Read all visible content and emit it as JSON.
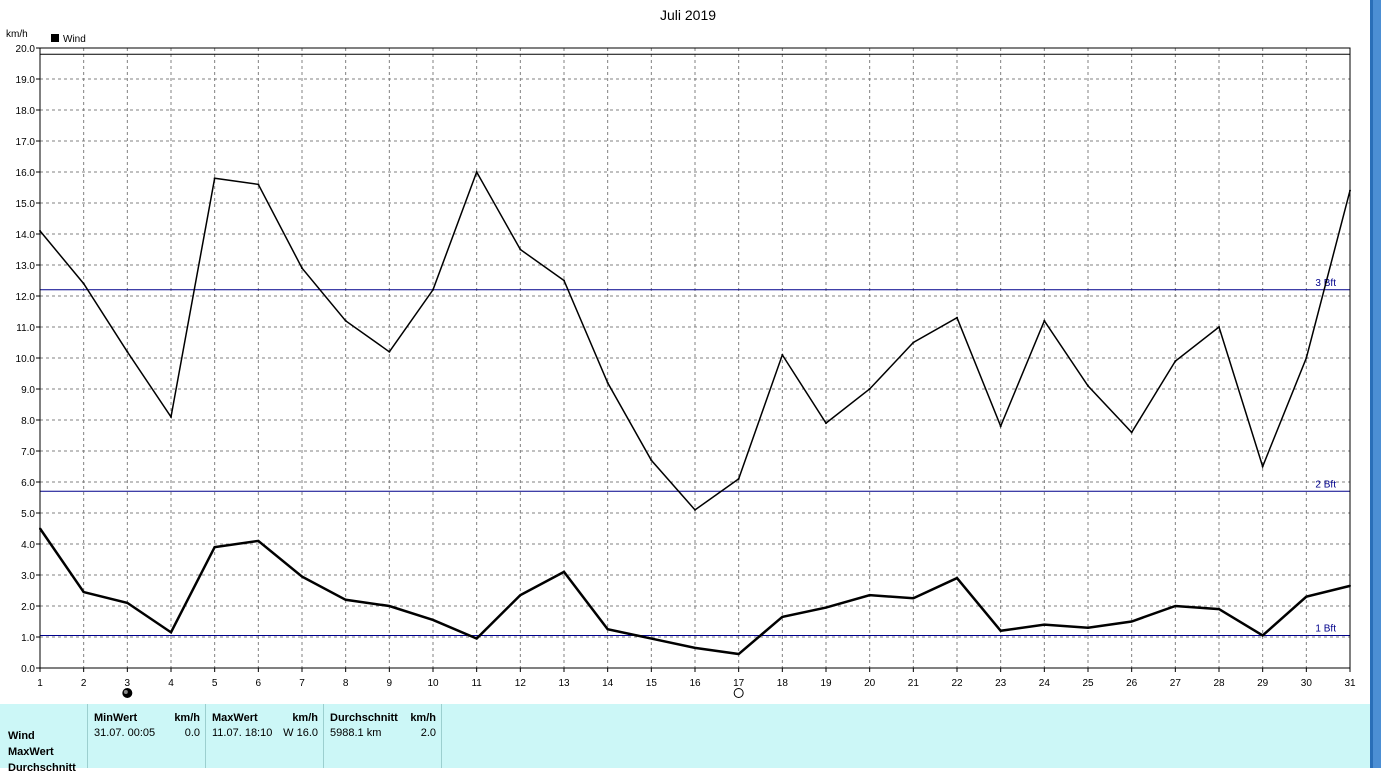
{
  "chart_data": {
    "type": "line",
    "title": "Juli 2019",
    "ylabel": "km/h",
    "xlabel": "",
    "x": [
      1,
      2,
      3,
      4,
      5,
      6,
      7,
      8,
      9,
      10,
      11,
      12,
      13,
      14,
      15,
      16,
      17,
      18,
      19,
      20,
      21,
      22,
      23,
      24,
      25,
      26,
      27,
      28,
      29,
      30,
      31
    ],
    "xlim": [
      1,
      31
    ],
    "ylim": [
      0,
      20
    ],
    "grid": true,
    "legend": {
      "placement": "top-left",
      "entries": [
        {
          "label": "Wind",
          "color": "#000000"
        }
      ]
    },
    "y_ticks": [
      "0.0",
      "1.0",
      "2.0",
      "3.0",
      "4.0",
      "5.0",
      "6.0",
      "7.0",
      "8.0",
      "9.0",
      "10.0",
      "11.0",
      "12.0",
      "13.0",
      "14.0",
      "15.0",
      "16.0",
      "17.0",
      "18.0",
      "19.0",
      "20.0"
    ],
    "x_ticks": [
      "1",
      "2",
      "3",
      "4",
      "5",
      "6",
      "7",
      "8",
      "9",
      "10",
      "11",
      "12",
      "13",
      "14",
      "15",
      "16",
      "17",
      "18",
      "19",
      "20",
      "21",
      "22",
      "23",
      "24",
      "25",
      "26",
      "27",
      "28",
      "29",
      "30",
      "31"
    ],
    "series": [
      {
        "name": "MaxWert",
        "stroke": "#000000",
        "stroke_width": 1.5,
        "values": [
          14.1,
          12.4,
          10.2,
          8.1,
          15.8,
          15.6,
          12.9,
          11.2,
          10.2,
          12.2,
          16.0,
          13.5,
          12.5,
          9.2,
          6.7,
          5.1,
          6.1,
          10.1,
          7.9,
          9.0,
          10.5,
          11.3,
          7.8,
          11.2,
          9.1,
          7.6,
          9.9,
          11.0,
          6.5,
          10.0,
          15.4
        ]
      },
      {
        "name": "Durchschnitt",
        "stroke": "#000000",
        "stroke_width": 2.5,
        "values": [
          4.5,
          2.45,
          2.1,
          1.15,
          3.9,
          4.1,
          2.95,
          2.2,
          2.0,
          1.55,
          0.95,
          2.35,
          3.1,
          1.25,
          0.95,
          0.65,
          0.45,
          1.65,
          1.95,
          2.35,
          2.25,
          2.9,
          1.2,
          1.4,
          1.3,
          1.5,
          2.0,
          1.9,
          1.05,
          2.3,
          2.65
        ]
      }
    ],
    "reference_lines": [
      {
        "label": "1 Bft",
        "value": 1.05,
        "color": "#00008b"
      },
      {
        "label": "2 Bft",
        "value": 5.7,
        "color": "#00008b"
      },
      {
        "label": "3 Bft",
        "value": 12.2,
        "color": "#00008b"
      },
      {
        "label": "",
        "value": 19.8,
        "color": "#000000"
      }
    ],
    "markers": [
      {
        "x": 3,
        "kind": "filled-moon"
      },
      {
        "x": 17,
        "kind": "empty-moon"
      }
    ]
  },
  "stats": {
    "row_labels": [
      "Wind",
      "MaxWert",
      "Durchschnitt"
    ],
    "columns": [
      {
        "header": "MinWert",
        "unit": "km/h",
        "value_text": "31.07.  00:05",
        "value": "0.0"
      },
      {
        "header": "MaxWert",
        "unit": "km/h",
        "value_text": "11.07.  18:10",
        "value": "W 16.0"
      },
      {
        "header": "Durchschnitt",
        "unit": "km/h",
        "value_text": "5988.1 km",
        "value": "2.0"
      }
    ]
  },
  "colors": {
    "plot_bg": "#ffffff",
    "grid": "#808080",
    "reference_line": "#00008b",
    "panel_bg": "#ccf7f7",
    "side_strip": "#2a6fb8"
  }
}
